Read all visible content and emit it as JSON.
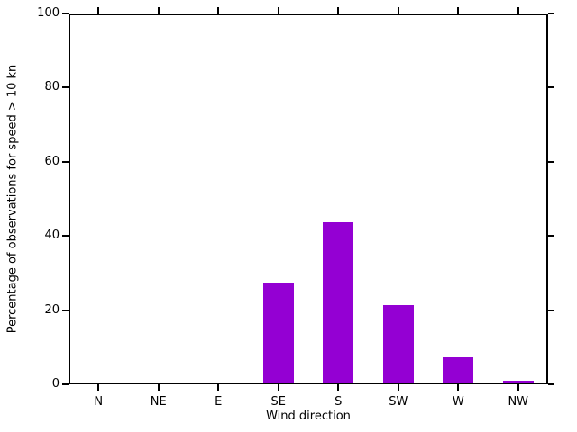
{
  "chart_data": {
    "type": "bar",
    "title": "",
    "categories": [
      "N",
      "NE",
      "E",
      "SE",
      "S",
      "SW",
      "W",
      "NW"
    ],
    "values": [
      0,
      0,
      0,
      27.4,
      43.8,
      21.4,
      7.2,
      1.0
    ],
    "xlabel": "Wind direction",
    "ylabel": "Percentage of observations for speed > 10 kn",
    "ylim": [
      0,
      100
    ],
    "yticks": [
      0,
      20,
      40,
      60,
      80,
      100
    ],
    "ytick_labels": [
      "0",
      "20",
      "40",
      "60",
      "80",
      "100"
    ],
    "bar_color": "#9400D3",
    "axis_color": "#000000",
    "background_color": "#ffffff",
    "grid": false,
    "legend": null,
    "tick_direction": "out",
    "ticks_mirrored_all_sides": true
  }
}
